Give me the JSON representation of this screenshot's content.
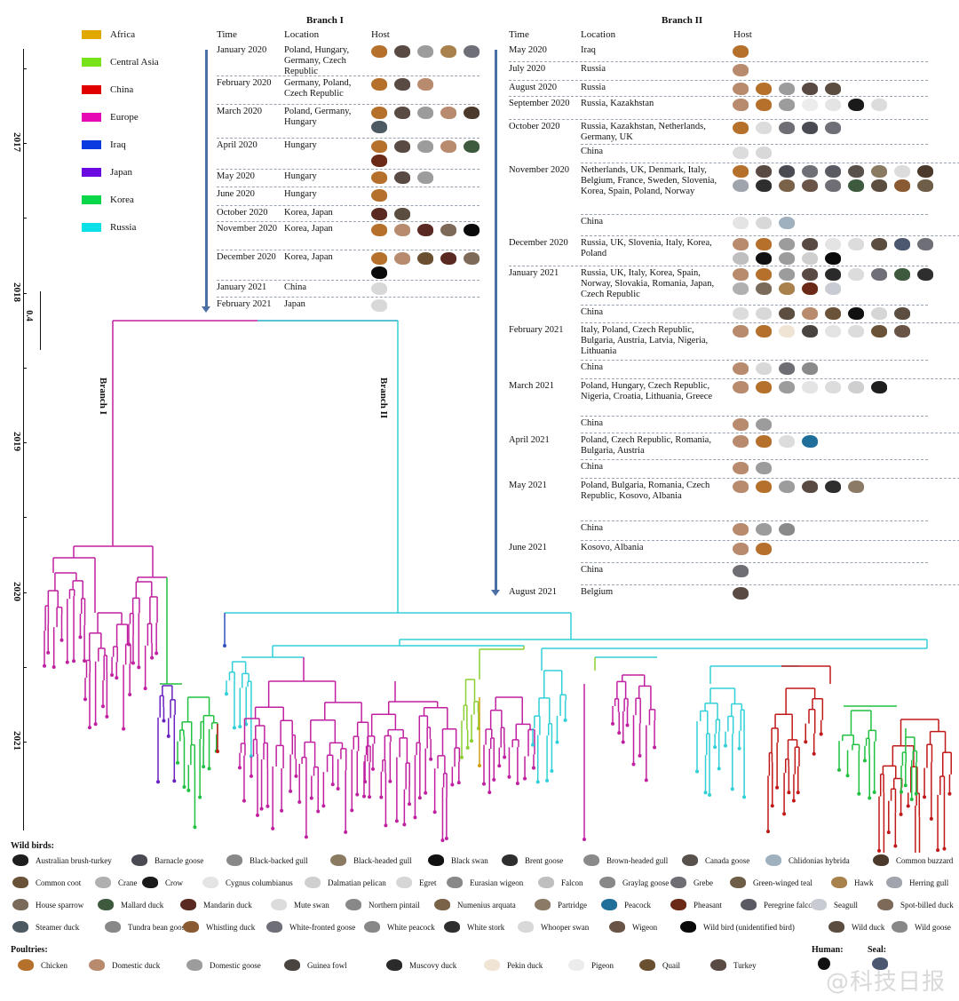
{
  "legend": [
    {
      "label": "Africa",
      "color": "#e0a800"
    },
    {
      "label": "Central Asia",
      "color": "#77e21a"
    },
    {
      "label": "China",
      "color": "#e00000"
    },
    {
      "label": "Europe",
      "color": "#e60ab4"
    },
    {
      "label": "Iraq",
      "color": "#0a3ae0"
    },
    {
      "label": "Japan",
      "color": "#6a0ae0"
    },
    {
      "label": "Korea",
      "color": "#0ad64a"
    },
    {
      "label": "Russia",
      "color": "#0ae0e6"
    }
  ],
  "axis": {
    "years": [
      "2017",
      "2018",
      "2019",
      "2020",
      "2021"
    ],
    "scale_label": "0.4"
  },
  "branch1": {
    "title": "Branch I",
    "vertical_label": "Branch I",
    "headers": {
      "time": "Time",
      "location": "Location",
      "host": "Host"
    },
    "rows": [
      {
        "time": "January 2020",
        "location": "Poland, Hungary, Germany, Czech Republic",
        "hosts": [
          "chicken",
          "turkey",
          "domestic-goose",
          "hawk",
          "white-fronted-goose"
        ]
      },
      {
        "time": "February 2020",
        "location": "Germany, Poland, Czech Republic",
        "hosts": [
          "chicken",
          "turkey",
          "domestic-duck"
        ]
      },
      {
        "time": "March 2020",
        "location": "Poland, Germany, Hungary",
        "hosts": [
          "chicken",
          "turkey",
          "domestic-goose",
          "domestic-duck",
          "common-buzzard",
          "steamer-duck"
        ]
      },
      {
        "time": "April 2020",
        "location": "Hungary",
        "hosts": [
          "chicken",
          "turkey",
          "domestic-goose",
          "domestic-duck",
          "mallard-duck",
          "pheasant"
        ]
      },
      {
        "time": "May 2020",
        "location": "Hungary",
        "hosts": [
          "chicken",
          "turkey",
          "domestic-goose"
        ]
      },
      {
        "time": "June 2020",
        "location": "Hungary",
        "hosts": [
          "chicken"
        ]
      },
      {
        "time": "October 2020",
        "location": "Korea, Japan",
        "hosts": [
          "mandarin-duck",
          "wild-duck"
        ]
      },
      {
        "time": "November 2020",
        "location": "Korea, Japan",
        "hosts": [
          "chicken",
          "domestic-duck",
          "mandarin-duck",
          "spot-billed-duck",
          "wild-bird"
        ]
      },
      {
        "time": "December 2020",
        "location": "Korea, Japan",
        "hosts": [
          "chicken",
          "domestic-duck",
          "quail",
          "mandarin-duck",
          "spot-billed-duck",
          "wild-bird"
        ]
      },
      {
        "time": "January 2021",
        "location": "China",
        "hosts": [
          "whooper-swan"
        ]
      },
      {
        "time": "February 2021",
        "location": "Japan",
        "hosts": [
          "whooper-swan"
        ]
      }
    ]
  },
  "branch2": {
    "title": "Branch II",
    "vertical_label": "Branch II",
    "headers": {
      "time": "Time",
      "location": "Location",
      "host": "Host"
    },
    "rows": [
      {
        "time": "May 2020",
        "location": "Iraq",
        "hosts": [
          "chicken"
        ]
      },
      {
        "time": "July 2020",
        "location": "Russia",
        "hosts": [
          "domestic-duck"
        ]
      },
      {
        "time": "August 2020",
        "location": "Russia",
        "hosts": [
          "domestic-duck",
          "chicken",
          "domestic-goose",
          "turkey",
          "wild-duck"
        ]
      },
      {
        "time": "September 2020",
        "location": "Russia, Kazakhstan",
        "hosts": [
          "domestic-duck",
          "chicken",
          "domestic-goose",
          "pigeon",
          "cygnus-columbianus",
          "crow",
          "mute-swan"
        ]
      },
      {
        "time": "October 2020",
        "location": "Russia, Kazakhstan, Netherlands, Germany, UK",
        "hosts": [
          "chicken",
          "mute-swan",
          "grebe",
          "barnacle-goose",
          "white-fronted-goose"
        ]
      },
      {
        "time": "",
        "location": "China",
        "hosts": [
          "mute-swan",
          "whooper-swan"
        ]
      },
      {
        "time": "November 2020",
        "location": "Netherlands, UK, Denmark, Italy, Belgium, France, Sweden, Slovenia, Korea, Spain, Poland, Norway",
        "hosts": [
          "chicken",
          "turkey",
          "barnacle-goose",
          "white-fronted-goose",
          "peregrine-falcon",
          "canada-goose",
          "black-headed-gull",
          "mute-swan",
          "common-buzzard",
          "herring-gull",
          "brent-goose",
          "numenius-arquata",
          "wigeon",
          "grebe",
          "mallard-duck",
          "wild-duck",
          "whistling-duck",
          "green-winged-teal"
        ]
      },
      {
        "time": "",
        "location": "China",
        "hosts": [
          "cygnus-columbianus",
          "whooper-swan",
          "chlidonias-hybrida"
        ]
      },
      {
        "time": "December 2020",
        "location": "Russia, UK, Slovenia, Italy, Korea, Poland",
        "hosts": [
          "domestic-duck",
          "chicken",
          "domestic-goose",
          "turkey",
          "cygnus-columbianus",
          "mute-swan",
          "wild-duck",
          "seal",
          "white-fronted-goose",
          "falcon",
          "human",
          "domestic-goose",
          "dalmatian-pelican",
          "wild-bird"
        ]
      },
      {
        "time": "January 2021",
        "location": "Russia, UK, Italy, Korea, Spain, Norway, Slovakia, Romania, Japan, Czech Republic",
        "hosts": [
          "domestic-duck",
          "chicken",
          "domestic-goose",
          "turkey",
          "muscovy-duck",
          "mute-swan",
          "white-fronted-goose",
          "mallard-duck",
          "white-stork",
          "crane",
          "house-sparrow",
          "hawk",
          "pheasant",
          "seagull"
        ]
      },
      {
        "time": "",
        "location": "China",
        "hosts": [
          "mute-swan",
          "whooper-swan",
          "wild-duck",
          "domestic-duck",
          "common-coot",
          "black-swan",
          "egret",
          "wild-duck"
        ]
      },
      {
        "time": "February 2021",
        "location": "Italy, Poland, Czech Republic, Bulgaria, Austria, Latvia, Nigeria, Lithuania",
        "hosts": [
          "domestic-duck",
          "chicken",
          "pekin-duck",
          "guinea-fowl",
          "cygnus-columbianus",
          "mute-swan",
          "common-coot",
          "wigeon"
        ]
      },
      {
        "time": "",
        "location": "China",
        "hosts": [
          "domestic-duck",
          "whooper-swan",
          "grebe",
          "brown-headed-gull"
        ]
      },
      {
        "time": "March 2021",
        "location": "Poland, Hungary, Czech Republic, Nigeria, Croatia, Lithuania, Greece",
        "hosts": [
          "domestic-duck",
          "chicken",
          "domestic-goose",
          "cygnus-columbianus",
          "mute-swan",
          "dalmatian-pelican",
          "australian-brush-turkey"
        ]
      },
      {
        "time": "",
        "location": "China",
        "hosts": [
          "domestic-duck",
          "domestic-goose"
        ]
      },
      {
        "time": "April 2021",
        "location": "Poland, Czech Republic, Romania, Bulgaria, Austria",
        "hosts": [
          "domestic-duck",
          "chicken",
          "mute-swan",
          "peacock"
        ]
      },
      {
        "time": "",
        "location": "China",
        "hosts": [
          "domestic-duck",
          "domestic-goose"
        ]
      },
      {
        "time": "May 2021",
        "location": "Poland, Bulgaria, Romania, Czech Republic, Kosovo, Albania",
        "hosts": [
          "domestic-duck",
          "chicken",
          "domestic-goose",
          "turkey",
          "white-stork",
          "partridge"
        ]
      },
      {
        "time": "",
        "location": "China",
        "hosts": [
          "domestic-duck",
          "domestic-goose",
          "brown-headed-gull"
        ]
      },
      {
        "time": "June 2021",
        "location": "Kosovo, Albania",
        "hosts": [
          "domestic-duck",
          "chicken"
        ]
      },
      {
        "time": "",
        "location": "China",
        "hosts": [
          "grebe"
        ]
      },
      {
        "time": "August 2021",
        "location": "Belgium",
        "hosts": [
          "turkey"
        ]
      }
    ]
  },
  "key": {
    "wild_title": "Wild birds:",
    "wild": [
      [
        "Australian brush-turkey",
        "Barnacle goose",
        "Black-backed gull",
        "Black-headed gull",
        "Black swan",
        "Brent goose",
        "Brown-headed gull",
        "Canada goose",
        "Chlidonias hybrida",
        "Common buzzard"
      ],
      [
        "Common coot",
        "Crane",
        "Crow",
        "Cygnus columbianus",
        "Dalmatian pelican",
        "Egret",
        "Eurasian wigeon",
        "Falcon",
        "Graylag goose",
        "Grebe",
        "Green-winged teal",
        "Hawk",
        "Herring gull"
      ],
      [
        "House sparrow",
        "Mallard duck",
        "Mandarin duck",
        "Mute swan",
        "Northern pintail",
        "Numenius arquata",
        "Partridge",
        "Peacock",
        "Pheasant",
        "Peregrine falcon",
        "Seagull",
        "Spot-billed duck"
      ],
      [
        "Steamer duck",
        "Tundra bean goose",
        "Whistling duck",
        "White-fronted goose",
        "White peacock",
        "White stork",
        "Whooper swan",
        "Wigeon",
        "Wild bird (unidentified bird)",
        "Wild duck",
        "Wild goose"
      ]
    ],
    "poultry_title": "Poultries:",
    "poultry": [
      "Chicken",
      "Domestic duck",
      "Domestic goose",
      "Guinea fowl",
      "Muscovy duck",
      "Pekin duck",
      "Pigeon",
      "Quail",
      "Turkey"
    ],
    "human_title": "Human:",
    "seal_title": "Seal:"
  },
  "watermark": "@科技日报",
  "host_colors": {
    "chicken": "#b5702c",
    "turkey": "#5a4a44",
    "domestic-goose": "#9c9c9c",
    "domestic-duck": "#b88a6e",
    "white-fronted-goose": "#6f6f78",
    "hawk": "#a9814c",
    "common-buzzard": "#4b3a2c",
    "steamer-duck": "#4e5a62",
    "mallard-duck": "#3e5a3e",
    "pheasant": "#6b2a18",
    "mandarin-duck": "#5a2a22",
    "wild-duck": "#5b4d40",
    "spot-billed-duck": "#7d6a58",
    "wild-bird": "#0a0a0a",
    "quail": "#6a5030",
    "whooper-swan": "#d8d8d8",
    "pigeon": "#ececec",
    "cygnus-columbianus": "#e4e4e4",
    "crow": "#1a1a1a",
    "mute-swan": "#dcdcdc",
    "grebe": "#6e6e74",
    "barnacle-goose": "#4a4a52",
    "canada-goose": "#58504a",
    "peregrine-falcon": "#5a5a62",
    "black-headed-gull": "#8b7a62",
    "herring-gull": "#a0a4ac",
    "brent-goose": "#2e2e2e",
    "numenius-arquata": "#7a6248",
    "wigeon": "#6a5448",
    "whistling-duck": "#8a5a32",
    "green-winged-teal": "#6e5e48",
    "chlidonias-hybrida": "#9fb0bf",
    "seal": "#4c5870",
    "falcon": "#bfbfbf",
    "human": "#111111",
    "dalmatian-pelican": "#cfcfcf",
    "muscovy-duck": "#2a2a2a",
    "white-stork": "#2e2e2e",
    "crane": "#b0b0b0",
    "house-sparrow": "#7a6a5a",
    "seagull": "#c8ccd2",
    "common-coot": "#6a5238",
    "black-swan": "#111111",
    "egret": "#d6d6d6",
    "pekin-duck": "#f0e4d4",
    "guinea-fowl": "#4a4440",
    "brown-headed-gull": "#8a8a8a",
    "australian-brush-turkey": "#1e1e1e",
    "peacock": "#1f6f9a",
    "partridge": "#8a7a66"
  }
}
